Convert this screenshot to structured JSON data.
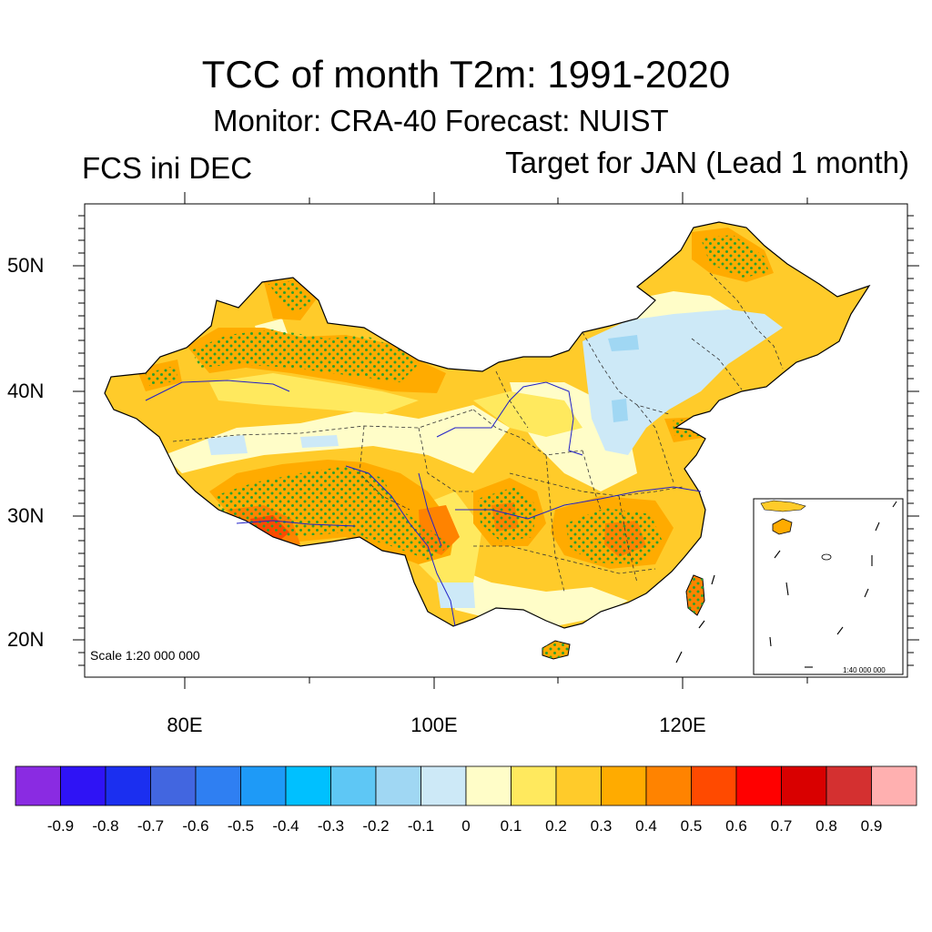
{
  "title": "TCC of month T2m: 1991-2020",
  "subtitle": "Monitor: CRA-40   Forecast: NUIST",
  "left_label": "FCS ini DEC",
  "right_label": "Target for JAN (Lead 1 month)",
  "map": {
    "region": "China",
    "lat_labels": [
      "50N",
      "40N",
      "30N",
      "20N"
    ],
    "lon_labels": [
      "80E",
      "100E",
      "120E"
    ],
    "scale_main": "Scale 1:20 000 000",
    "scale_inset": "1:40 000 000",
    "stipple_color": "#2ca02c"
  },
  "colorbar": {
    "colors": [
      "#8a2be2",
      "#2f13f5",
      "#1b2ff0",
      "#4266e0",
      "#2f7ff2",
      "#1e9af7",
      "#00c0ff",
      "#5ec7f5",
      "#a0d7f3",
      "#cde9f7",
      "#fffdc8",
      "#ffe95e",
      "#ffcb2a",
      "#ffab00",
      "#ff8300",
      "#ff4a00",
      "#ff0000",
      "#d90000",
      "#d43030",
      "#ffb0b0"
    ],
    "labels": [
      "-0.9",
      "-0.8",
      "-0.7",
      "-0.6",
      "-0.5",
      "-0.4",
      "-0.3",
      "-0.2",
      "-0.1",
      "0",
      "0.1",
      "0.2",
      "0.3",
      "0.4",
      "0.5",
      "0.6",
      "0.7",
      "0.8",
      "0.9"
    ]
  }
}
